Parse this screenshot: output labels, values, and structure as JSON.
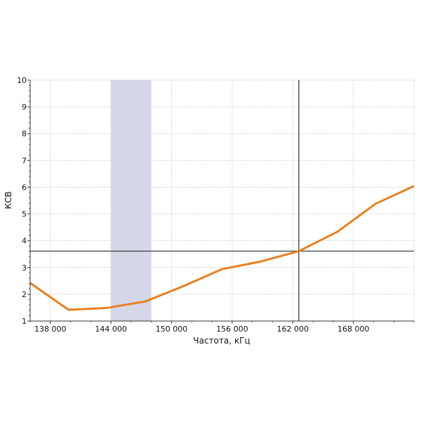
{
  "chart_data": {
    "type": "line",
    "title": "",
    "xlabel": "Частота, кГц",
    "ylabel": "КСВ",
    "xlim": [
      136000,
      174000
    ],
    "ylim": [
      1,
      10
    ],
    "grid": true,
    "x_ticks": [
      138000,
      144000,
      150000,
      156000,
      162000,
      168000
    ],
    "x_tick_labels": [
      "138 000",
      "144 000",
      "150 000",
      "156 000",
      "162 000",
      "168 000"
    ],
    "y_ticks": [
      1,
      2,
      3,
      4,
      5,
      6,
      7,
      8,
      9,
      10
    ],
    "y_tick_labels": [
      "1",
      "2",
      "3",
      "4",
      "5",
      "6",
      "7",
      "8",
      "9",
      "10"
    ],
    "series": [
      {
        "color": "#e8801e",
        "x": [
          136000,
          139800,
          143600,
          147400,
          151200,
          155000,
          158800,
          162600,
          166400,
          170200,
          174000
        ],
        "y": [
          2.42,
          1.42,
          1.49,
          1.73,
          2.31,
          2.94,
          3.22,
          3.61,
          4.33,
          5.38,
          6.04
        ]
      }
    ],
    "shaded_band": {
      "x": [
        144000,
        148000
      ],
      "color": "#d5d6e8"
    },
    "cursor": {
      "x": 162600,
      "y": 3.61,
      "color_vertical": "#000000",
      "color_horizontal": "#555555"
    }
  }
}
